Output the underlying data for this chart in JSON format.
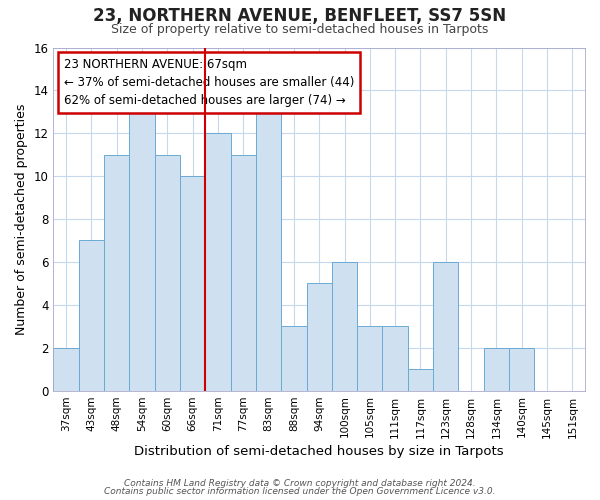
{
  "title": "23, NORTHERN AVENUE, BENFLEET, SS7 5SN",
  "subtitle": "Size of property relative to semi-detached houses in Tarpots",
  "xlabel": "Distribution of semi-detached houses by size in Tarpots",
  "ylabel": "Number of semi-detached properties",
  "categories": [
    "37sqm",
    "43sqm",
    "48sqm",
    "54sqm",
    "60sqm",
    "66sqm",
    "71sqm",
    "77sqm",
    "83sqm",
    "88sqm",
    "94sqm",
    "100sqm",
    "105sqm",
    "111sqm",
    "117sqm",
    "123sqm",
    "128sqm",
    "134sqm",
    "140sqm",
    "145sqm",
    "151sqm"
  ],
  "values": [
    2,
    7,
    11,
    13,
    11,
    10,
    12,
    11,
    13,
    3,
    5,
    6,
    3,
    3,
    1,
    6,
    0,
    2,
    2,
    0,
    0
  ],
  "bar_color": "#cfe0f0",
  "bar_edge_color": "#6aaad4",
  "marker_index": 5,
  "marker_color": "#cc0000",
  "annotation_title": "23 NORTHERN AVENUE: 67sqm",
  "annotation_line1": "← 37% of semi-detached houses are smaller (44)",
  "annotation_line2": "62% of semi-detached houses are larger (74) →",
  "annotation_box_color": "#cc0000",
  "ylim": [
    0,
    16
  ],
  "yticks": [
    0,
    2,
    4,
    6,
    8,
    10,
    12,
    14,
    16
  ],
  "footer1": "Contains HM Land Registry data © Crown copyright and database right 2024.",
  "footer2": "Contains public sector information licensed under the Open Government Licence v3.0.",
  "background_color": "#ffffff",
  "grid_color": "#c8d8ec"
}
